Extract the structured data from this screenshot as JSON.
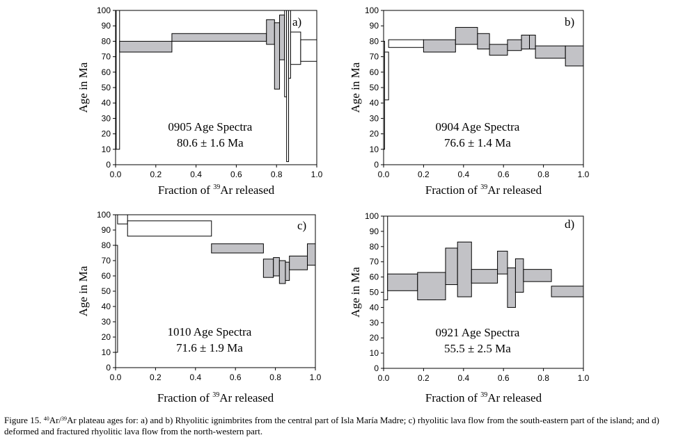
{
  "colors": {
    "step_fill": "#c2c2c6",
    "axis": "#000000"
  },
  "chart_data": [
    {
      "type": "bar",
      "subtype": "age-spectrum",
      "panel_label": "a)",
      "title": "0905 Age Spectra",
      "subtitle": "80.6 ± 1.6 Ma",
      "xlabel_pre": "Fraction of ",
      "xlabel_sup": "39",
      "xlabel_post": "Ar released",
      "ylabel": "Age in Ma",
      "xlim": [
        0,
        1
      ],
      "ylim": [
        0,
        100
      ],
      "xticks": [
        "0.0",
        "0.2",
        "0.4",
        "0.6",
        "0.8",
        "1.0"
      ],
      "yticks": [
        "0",
        "10",
        "20",
        "30",
        "40",
        "50",
        "60",
        "70",
        "80",
        "90",
        "100"
      ],
      "steps": [
        {
          "x0": 0.003,
          "x1": 0.02,
          "ymin": 10,
          "ymax": 100,
          "filled": false
        },
        {
          "x0": 0.02,
          "x1": 0.28,
          "ymin": 73,
          "ymax": 80,
          "filled": true
        },
        {
          "x0": 0.28,
          "x1": 0.75,
          "ymin": 80,
          "ymax": 85,
          "filled": true
        },
        {
          "x0": 0.75,
          "x1": 0.79,
          "ymin": 78,
          "ymax": 94,
          "filled": true
        },
        {
          "x0": 0.79,
          "x1": 0.815,
          "ymin": 49,
          "ymax": 92,
          "filled": true
        },
        {
          "x0": 0.815,
          "x1": 0.84,
          "ymin": 68,
          "ymax": 97,
          "filled": true
        },
        {
          "x0": 0.84,
          "x1": 0.85,
          "ymin": 44,
          "ymax": 100,
          "filled": false
        },
        {
          "x0": 0.85,
          "x1": 0.86,
          "ymin": 2,
          "ymax": 100,
          "filled": false
        },
        {
          "x0": 0.86,
          "x1": 0.87,
          "ymin": 56,
          "ymax": 100,
          "filled": false
        },
        {
          "x0": 0.87,
          "x1": 0.92,
          "ymin": 65,
          "ymax": 86,
          "filled": false
        },
        {
          "x0": 0.92,
          "x1": 1.0,
          "ymin": 67,
          "ymax": 81,
          "filled": false
        }
      ]
    },
    {
      "type": "bar",
      "subtype": "age-spectrum",
      "panel_label": "b)",
      "title": "0904 Age Spectra",
      "subtitle": "76.6 ± 1.4 Ma",
      "xlabel_pre": "Fraction of ",
      "xlabel_sup": "39",
      "xlabel_post": "Ar released",
      "ylabel": "Age in Ma",
      "xlim": [
        0,
        1
      ],
      "ylim": [
        0,
        100
      ],
      "xticks": [
        "0.0",
        "0.2",
        "0.4",
        "0.6",
        "0.8",
        "1.0"
      ],
      "yticks": [
        "0",
        "10",
        "20",
        "30",
        "40",
        "50",
        "60",
        "70",
        "80",
        "90",
        "100"
      ],
      "steps": [
        {
          "x0": 0.0,
          "x1": 0.005,
          "ymin": 10,
          "ymax": 80,
          "filled": false
        },
        {
          "x0": 0.005,
          "x1": 0.025,
          "ymin": 42,
          "ymax": 73,
          "filled": false
        },
        {
          "x0": 0.025,
          "x1": 0.2,
          "ymin": 76,
          "ymax": 81,
          "filled": false
        },
        {
          "x0": 0.2,
          "x1": 0.36,
          "ymin": 73,
          "ymax": 81,
          "filled": true
        },
        {
          "x0": 0.36,
          "x1": 0.47,
          "ymin": 78,
          "ymax": 89,
          "filled": true
        },
        {
          "x0": 0.47,
          "x1": 0.53,
          "ymin": 75,
          "ymax": 85,
          "filled": true
        },
        {
          "x0": 0.53,
          "x1": 0.62,
          "ymin": 71,
          "ymax": 78,
          "filled": true
        },
        {
          "x0": 0.62,
          "x1": 0.69,
          "ymin": 74,
          "ymax": 81,
          "filled": true
        },
        {
          "x0": 0.69,
          "x1": 0.73,
          "ymin": 75,
          "ymax": 84,
          "filled": true
        },
        {
          "x0": 0.73,
          "x1": 0.76,
          "ymin": 75,
          "ymax": 84,
          "filled": true
        },
        {
          "x0": 0.76,
          "x1": 0.91,
          "ymin": 69,
          "ymax": 77,
          "filled": true
        },
        {
          "x0": 0.91,
          "x1": 1.0,
          "ymin": 64,
          "ymax": 77,
          "filled": true
        }
      ]
    },
    {
      "type": "bar",
      "subtype": "age-spectrum",
      "panel_label": "c)",
      "title": "1010 Age Spectra",
      "subtitle": "71.6 ± 1.9 Ma",
      "xlabel_pre": "Fraction of ",
      "xlabel_sup": "39",
      "xlabel_post": "Ar released",
      "ylabel": "Age in Ma",
      "xlim": [
        0,
        1
      ],
      "ylim": [
        0,
        100
      ],
      "xticks": [
        "0.0",
        "0.2",
        "0.4",
        "0.6",
        "0.8",
        "1.0"
      ],
      "yticks": [
        "0",
        "10",
        "20",
        "30",
        "40",
        "50",
        "60",
        "70",
        "80",
        "90",
        "100"
      ],
      "steps": [
        {
          "x0": 0.0,
          "x1": 0.01,
          "ymin": 10,
          "ymax": 80,
          "filled": false
        },
        {
          "x0": 0.01,
          "x1": 0.06,
          "ymin": 94,
          "ymax": 100,
          "filled": false
        },
        {
          "x0": 0.06,
          "x1": 0.48,
          "ymin": 86,
          "ymax": 96,
          "filled": false
        },
        {
          "x0": 0.48,
          "x1": 0.74,
          "ymin": 75,
          "ymax": 81,
          "filled": true
        },
        {
          "x0": 0.74,
          "x1": 0.79,
          "ymin": 59,
          "ymax": 71,
          "filled": true
        },
        {
          "x0": 0.79,
          "x1": 0.82,
          "ymin": 60,
          "ymax": 72,
          "filled": true
        },
        {
          "x0": 0.82,
          "x1": 0.85,
          "ymin": 55,
          "ymax": 70,
          "filled": true
        },
        {
          "x0": 0.85,
          "x1": 0.87,
          "ymin": 57,
          "ymax": 69,
          "filled": true
        },
        {
          "x0": 0.87,
          "x1": 0.96,
          "ymin": 64,
          "ymax": 73,
          "filled": true
        },
        {
          "x0": 0.96,
          "x1": 1.0,
          "ymin": 67,
          "ymax": 81,
          "filled": true
        }
      ]
    },
    {
      "type": "bar",
      "subtype": "age-spectrum",
      "panel_label": "d)",
      "title": "0921 Age Spectra",
      "subtitle": "55.5 ± 2.5 Ma",
      "xlabel_pre": "Fraction of ",
      "xlabel_sup": "39",
      "xlabel_post": "Ar released",
      "ylabel": "Age in Ma",
      "xlim": [
        0,
        1
      ],
      "ylim": [
        0,
        100
      ],
      "xticks": [
        "0.0",
        "0.2",
        "0.4",
        "0.6",
        "0.8",
        "1.0"
      ],
      "yticks": [
        "0",
        "10",
        "20",
        "30",
        "40",
        "50",
        "60",
        "70",
        "80",
        "90",
        "100"
      ],
      "steps": [
        {
          "x0": 0.0,
          "x1": 0.02,
          "ymin": 45,
          "ymax": 100,
          "filled": false
        },
        {
          "x0": 0.02,
          "x1": 0.17,
          "ymin": 51,
          "ymax": 62,
          "filled": true
        },
        {
          "x0": 0.17,
          "x1": 0.31,
          "ymin": 45,
          "ymax": 63,
          "filled": true
        },
        {
          "x0": 0.31,
          "x1": 0.37,
          "ymin": 55,
          "ymax": 79,
          "filled": true
        },
        {
          "x0": 0.37,
          "x1": 0.44,
          "ymin": 47,
          "ymax": 83,
          "filled": true
        },
        {
          "x0": 0.44,
          "x1": 0.57,
          "ymin": 56,
          "ymax": 65,
          "filled": true
        },
        {
          "x0": 0.57,
          "x1": 0.62,
          "ymin": 62,
          "ymax": 77,
          "filled": true
        },
        {
          "x0": 0.62,
          "x1": 0.66,
          "ymin": 40,
          "ymax": 66,
          "filled": true
        },
        {
          "x0": 0.66,
          "x1": 0.7,
          "ymin": 50,
          "ymax": 72,
          "filled": true
        },
        {
          "x0": 0.7,
          "x1": 0.84,
          "ymin": 57,
          "ymax": 65,
          "filled": true
        },
        {
          "x0": 0.84,
          "x1": 1.0,
          "ymin": 47,
          "ymax": 54,
          "filled": true
        }
      ]
    }
  ],
  "caption": {
    "figure_label": "Figure 15. ",
    "sup_40": "40",
    "ar1": "Ar/",
    "sup_39": "39",
    "body": "Ar plateau ages for: a) and b) Rhyolitic ignimbrites from the central part of Isla María Madre; c) rhyolitic lava flow from the south-eastern part of the island; and d) deformed and fractured rhyolitic lava flow from the north-western part."
  }
}
